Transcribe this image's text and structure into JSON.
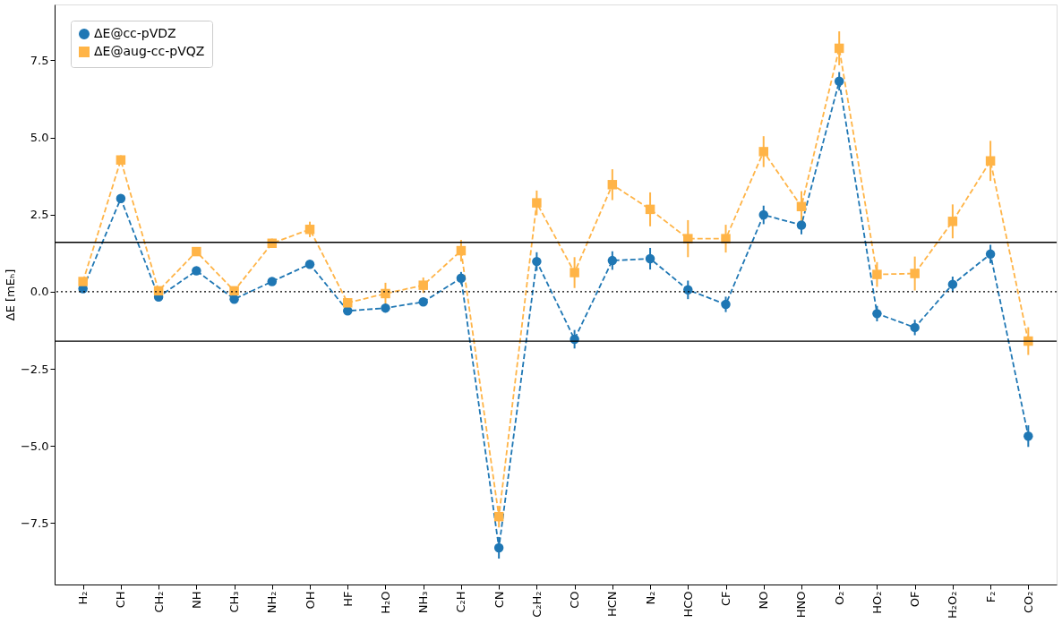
{
  "chart_data": {
    "type": "line",
    "ylabel": "ΔE [mEₕ]",
    "categories": [
      "H₂",
      "CH",
      "CH₂",
      "NH",
      "CH₃",
      "NH₂",
      "OH",
      "HF",
      "H₂O",
      "NH₃",
      "C₂H",
      "CN",
      "C₂H₂",
      "CO",
      "HCN",
      "N₂",
      "HCO",
      "CF",
      "NO",
      "HNO",
      "O₂",
      "HO₂",
      "OF",
      "H₂O₂",
      "F₂",
      "CO₂"
    ],
    "series": [
      {
        "name": "ΔE@cc-pVDZ",
        "color": "#1f77b4",
        "marker": "circle",
        "values": [
          0.1,
          3.02,
          -0.17,
          0.68,
          -0.24,
          0.33,
          0.89,
          -0.62,
          -0.53,
          -0.33,
          0.44,
          -8.3,
          0.98,
          -1.54,
          1.01,
          1.07,
          0.06,
          -0.41,
          2.49,
          2.16,
          6.82,
          -0.71,
          -1.16,
          0.24,
          1.22,
          -4.68
        ],
        "errors": [
          0.1,
          0.1,
          0.1,
          0.1,
          0.1,
          0.1,
          0.1,
          0.1,
          0.1,
          0.1,
          0.2,
          0.35,
          0.3,
          0.3,
          0.3,
          0.35,
          0.3,
          0.25,
          0.3,
          0.3,
          0.3,
          0.25,
          0.25,
          0.25,
          0.3,
          0.35
        ]
      },
      {
        "name": "ΔE@aug-cc-pVQZ",
        "color": "#ffb447",
        "marker": "square",
        "values": [
          0.33,
          4.27,
          0.03,
          1.3,
          0.03,
          1.57,
          2.02,
          -0.36,
          -0.06,
          0.21,
          1.33,
          -7.29,
          2.88,
          0.62,
          3.47,
          2.67,
          1.72,
          1.72,
          4.54,
          2.76,
          7.89,
          0.56,
          0.59,
          2.28,
          4.24,
          -1.6
        ],
        "errors": [
          0.1,
          0.15,
          0.1,
          0.1,
          0.1,
          0.15,
          0.25,
          0.15,
          0.35,
          0.25,
          0.35,
          0.35,
          0.4,
          0.5,
          0.5,
          0.55,
          0.6,
          0.45,
          0.5,
          0.5,
          0.55,
          0.4,
          0.55,
          0.55,
          0.65,
          0.45
        ]
      }
    ],
    "line_style": "dashed",
    "ylim": [
      -9.49,
      9.31
    ],
    "yticks": [
      {
        "value": -7.5,
        "label": "−7.5"
      },
      {
        "value": -5,
        "label": "−5.0"
      },
      {
        "value": -2.5,
        "label": "−2.5"
      },
      {
        "value": 0,
        "label": "0.0"
      },
      {
        "value": 2.5,
        "label": "2.5"
      },
      {
        "value": 5,
        "label": "5.0"
      },
      {
        "value": 7.5,
        "label": "7.5"
      }
    ],
    "ref_lines": [
      {
        "axis": "y",
        "value": 1.6,
        "color": "#000000",
        "line_style": "solid"
      },
      {
        "axis": "y",
        "value": -1.6,
        "color": "#000000",
        "line_style": "solid"
      },
      {
        "axis": "y",
        "value": 0,
        "color": "#000000",
        "line_style": "dotted"
      }
    ],
    "grid": false,
    "legend": "top left"
  }
}
